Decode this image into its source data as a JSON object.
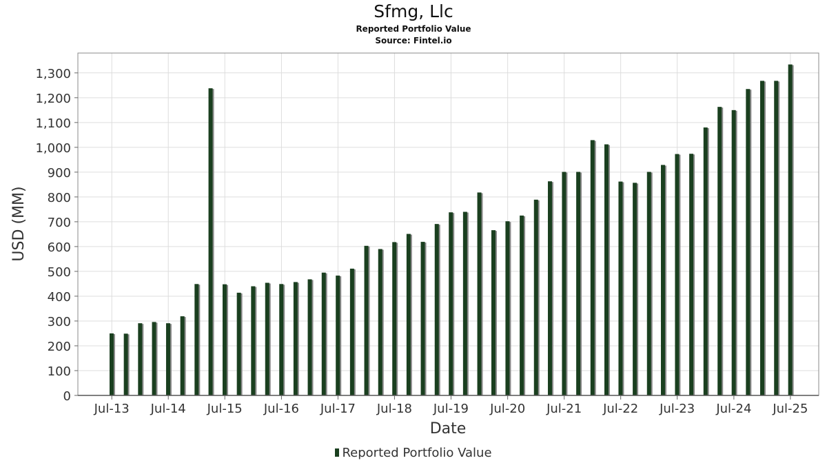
{
  "title": "Sfmg, Llc",
  "subtitle": "Reported Portfolio Value",
  "source": "Source: Fintel.io",
  "legend": {
    "label": "Reported Portfolio Value"
  },
  "colors": {
    "bar": "#1a3f1f",
    "bar_shadow": "#8a8a8a",
    "grid": "#dddddd",
    "frame": "#888888"
  },
  "chart_data": {
    "type": "bar",
    "title": "Sfmg, Llc",
    "subtitle": "Reported Portfolio Value",
    "xlabel": "Date",
    "ylabel": "USD (MM)",
    "ylim": [
      0,
      1380
    ],
    "yticks": [
      0,
      100,
      200,
      300,
      400,
      500,
      600,
      700,
      800,
      900,
      1000,
      1100,
      1200,
      1300
    ],
    "ytick_labels": [
      "0",
      "100",
      "200",
      "300",
      "400",
      "500",
      "600",
      "700",
      "800",
      "900",
      "1,000",
      "1,100",
      "1,200",
      "1,300"
    ],
    "xticks": [
      "2013-07-01",
      "2014-07-01",
      "2015-07-01",
      "2016-07-01",
      "2017-07-01",
      "2018-07-01",
      "2019-07-01",
      "2020-07-01",
      "2021-07-01",
      "2022-07-01",
      "2023-07-01",
      "2024-07-01",
      "2025-07-01"
    ],
    "xtick_labels": [
      "Jul-13",
      "Jul-14",
      "Jul-15",
      "Jul-16",
      "Jul-17",
      "Jul-18",
      "Jul-19",
      "Jul-20",
      "Jul-21",
      "Jul-22",
      "Jul-23",
      "Jul-24",
      "Jul-25"
    ],
    "xlim": [
      "2012-11-24",
      "2025-12-31"
    ],
    "grid": true,
    "legend_position": "bottom-center",
    "series": [
      {
        "name": "Reported Portfolio Value",
        "x": [
          "2013-06-30",
          "2013-09-30",
          "2013-12-31",
          "2014-03-31",
          "2014-06-30",
          "2014-09-30",
          "2014-12-31",
          "2015-03-31",
          "2015-06-30",
          "2015-09-30",
          "2015-12-31",
          "2016-03-31",
          "2016-06-30",
          "2016-09-30",
          "2016-12-31",
          "2017-03-31",
          "2017-06-30",
          "2017-09-30",
          "2017-12-31",
          "2018-03-31",
          "2018-06-30",
          "2018-09-30",
          "2018-12-31",
          "2019-03-31",
          "2019-06-30",
          "2019-09-30",
          "2019-12-31",
          "2020-03-31",
          "2020-06-30",
          "2020-09-30",
          "2020-12-31",
          "2021-03-31",
          "2021-06-30",
          "2021-09-30",
          "2021-12-31",
          "2022-03-31",
          "2022-06-30",
          "2022-09-30",
          "2022-12-31",
          "2023-03-31",
          "2023-06-30",
          "2023-09-30",
          "2023-12-31",
          "2024-03-31",
          "2024-06-30",
          "2024-09-30",
          "2024-12-31",
          "2025-03-31",
          "2025-06-30"
        ],
        "values": [
          250,
          249,
          291,
          296,
          291,
          319,
          449,
          1238,
          448,
          414,
          440,
          454,
          449,
          457,
          468,
          495,
          483,
          511,
          603,
          590,
          618,
          651,
          619,
          691,
          738,
          740,
          818,
          666,
          702,
          725,
          789,
          863,
          901,
          901,
          1029,
          1012,
          862,
          857,
          901,
          929,
          973,
          974,
          1080,
          1163,
          1150,
          1235,
          1268,
          1268,
          1334
        ]
      }
    ]
  }
}
